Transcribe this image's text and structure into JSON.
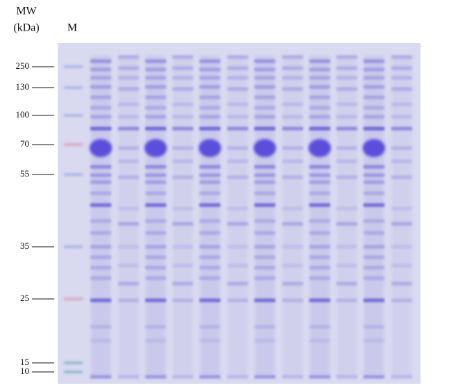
{
  "header": {
    "mw": "MW",
    "kda": "(kDa)",
    "marker_lane": "M"
  },
  "markers": [
    "250",
    "130",
    "100",
    "70",
    "55",
    "35",
    "25",
    "15",
    "10"
  ]
}
